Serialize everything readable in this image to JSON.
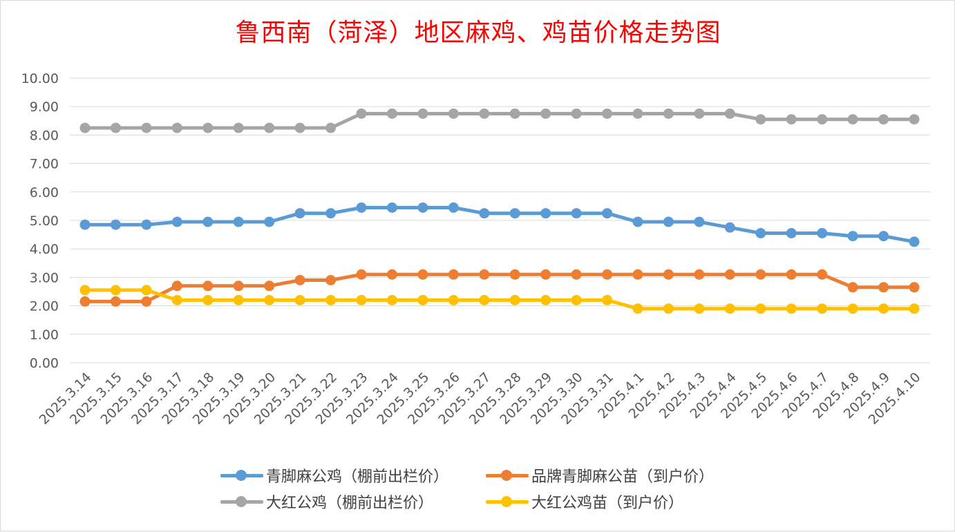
{
  "chart_data": {
    "type": "line",
    "title": "鲁西南（菏泽）地区麻鸡、鸡苗价格走势图",
    "xlabel": "",
    "ylabel": "",
    "ylim": [
      0,
      10
    ],
    "yticks": [
      "0.00",
      "1.00",
      "2.00",
      "3.00",
      "4.00",
      "5.00",
      "6.00",
      "7.00",
      "8.00",
      "9.00",
      "10.00"
    ],
    "grid": true,
    "legend_position": "bottom",
    "categories": [
      "2025.3.14",
      "2025.3.15",
      "2025.3.16",
      "2025.3.17",
      "2025.3.18",
      "2025.3.19",
      "2025.3.20",
      "2025.3.21",
      "2025.3.22",
      "2025.3.23",
      "2025.3.24",
      "2025.3.25",
      "2025.3.26",
      "2025.3.27",
      "2025.3.28",
      "2025.3.29",
      "2025.3.30",
      "2025.3.31",
      "2025.4.1",
      "2025.4.2",
      "2025.4.3",
      "2025.4.4",
      "2025.4.5",
      "2025.4.6",
      "2025.4.7",
      "2025.4.8",
      "2025.4.9",
      "2025.4.10"
    ],
    "series": [
      {
        "name": "青脚麻公鸡（棚前出栏价）",
        "color": "#5b9bd5",
        "values": [
          4.85,
          4.85,
          4.85,
          4.95,
          4.95,
          4.95,
          4.95,
          5.25,
          5.25,
          5.45,
          5.45,
          5.45,
          5.45,
          5.25,
          5.25,
          5.25,
          5.25,
          5.25,
          4.95,
          4.95,
          4.95,
          4.75,
          4.55,
          4.55,
          4.55,
          4.45,
          4.45,
          4.25
        ]
      },
      {
        "name": "品牌青脚麻公苗（到户价）",
        "color": "#ed7d31",
        "values": [
          2.15,
          2.15,
          2.15,
          2.7,
          2.7,
          2.7,
          2.7,
          2.9,
          2.9,
          3.1,
          3.1,
          3.1,
          3.1,
          3.1,
          3.1,
          3.1,
          3.1,
          3.1,
          3.1,
          3.1,
          3.1,
          3.1,
          3.1,
          3.1,
          3.1,
          2.65,
          2.65,
          2.65
        ]
      },
      {
        "name": "大红公鸡（棚前出栏价）",
        "color": "#a5a5a5",
        "values": [
          8.25,
          8.25,
          8.25,
          8.25,
          8.25,
          8.25,
          8.25,
          8.25,
          8.25,
          8.75,
          8.75,
          8.75,
          8.75,
          8.75,
          8.75,
          8.75,
          8.75,
          8.75,
          8.75,
          8.75,
          8.75,
          8.75,
          8.55,
          8.55,
          8.55,
          8.55,
          8.55,
          8.55
        ]
      },
      {
        "name": "大红公鸡苗（到户价）",
        "color": "#ffc000",
        "values": [
          2.55,
          2.55,
          2.55,
          2.2,
          2.2,
          2.2,
          2.2,
          2.2,
          2.2,
          2.2,
          2.2,
          2.2,
          2.2,
          2.2,
          2.2,
          2.2,
          2.2,
          2.2,
          1.9,
          1.9,
          1.9,
          1.9,
          1.9,
          1.9,
          1.9,
          1.9,
          1.9,
          1.9
        ]
      }
    ]
  }
}
